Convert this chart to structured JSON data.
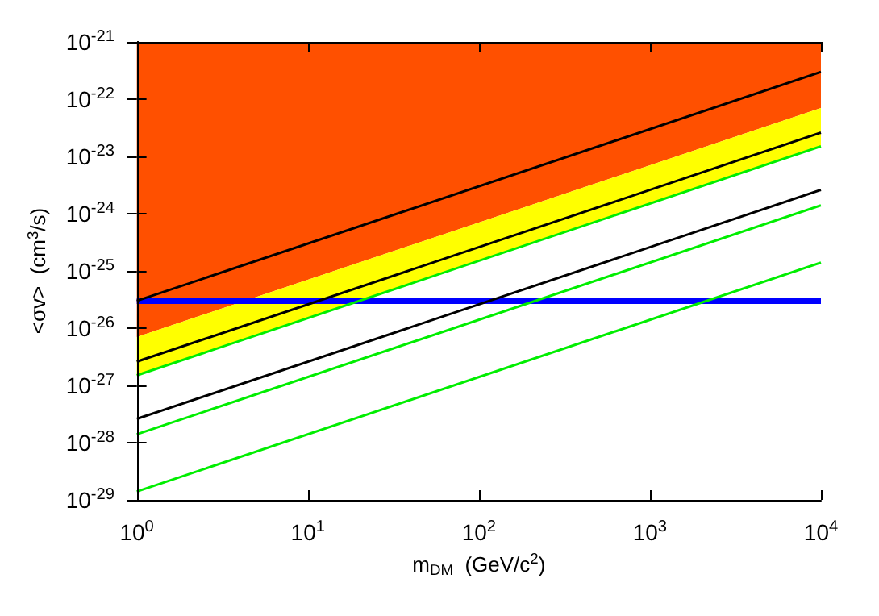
{
  "chart_data": {
    "type": "line",
    "xlabel": "m$_{DM}$  (GeV/c$^{2}$)",
    "ylabel": "<σv>  (cm$^{3}$/s)",
    "log": "xy",
    "grid": false,
    "marker": "none",
    "line_style": "solid",
    "xlim": [
      1,
      10000
    ],
    "ylim": [
      1e-29,
      1e-21
    ],
    "xticks": [
      {
        "value": 1,
        "label": "10$^{0}$"
      },
      {
        "value": 10,
        "label": "10$^{1}$"
      },
      {
        "value": 100,
        "label": "10$^{2}$"
      },
      {
        "value": 1000,
        "label": "10$^{3}$"
      },
      {
        "value": 10000,
        "label": "10$^{4}$"
      }
    ],
    "yticks": [
      {
        "value": 1e-29,
        "label": "10$^{-29}$"
      },
      {
        "value": 1e-28,
        "label": "10$^{-28}$"
      },
      {
        "value": 1e-27,
        "label": "10$^{-27}$"
      },
      {
        "value": 1e-26,
        "label": "10$^{-26}$"
      },
      {
        "value": 1e-25,
        "label": "10$^{-25}$"
      },
      {
        "value": 1e-24,
        "label": "10$^{-24}$"
      },
      {
        "value": 1e-23,
        "label": "10$^{-23}$"
      },
      {
        "value": 1e-22,
        "label": "10$^{-22}$"
      },
      {
        "value": 1e-21,
        "label": "10$^{-21}$"
      }
    ],
    "x": [
      1,
      10000
    ],
    "series": [
      {
        "color": "#ff5000",
        "values": [
          null,
          null
        ],
        "lower": [
          7e-27,
          7e-23
        ],
        "upper": [
          1e-21,
          1e-21
        ]
      },
      {
        "color": "#ffff00",
        "values": [
          null,
          null
        ],
        "lower": [
          1.5e-27,
          1.5e-23
        ],
        "upper": [
          7e-27,
          7e-23
        ]
      },
      {
        "color": "#0000ff",
        "values": [
          3e-26,
          3e-26
        ]
      },
      {
        "color": "#000000",
        "values": [
          3e-26,
          3e-22
        ]
      },
      {
        "color": "#000000",
        "values": [
          2.6e-27,
          2.6e-23
        ]
      },
      {
        "color": "#000000",
        "values": [
          2.6e-28,
          2.6e-24
        ]
      },
      {
        "color": "#00ee00",
        "values": [
          1.5e-27,
          1.5e-23
        ]
      },
      {
        "color": "#00ee00",
        "values": [
          1.4e-28,
          1.4e-24
        ]
      },
      {
        "color": "#00ee00",
        "values": [
          1.4e-29,
          1.4e-25
        ]
      }
    ]
  }
}
